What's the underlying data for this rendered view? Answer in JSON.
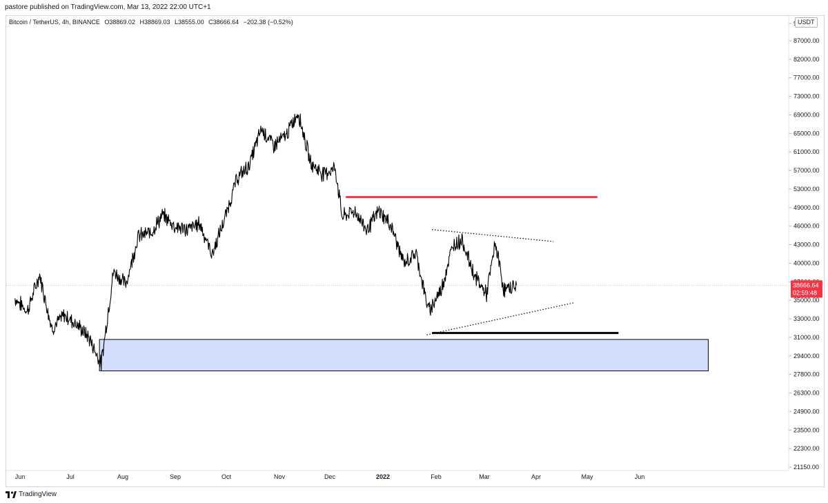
{
  "header": {
    "published_text": "pastore published on TradingView.com, Mar 13, 2022 22:00 UTC+1"
  },
  "legend": {
    "symbol": "Bitcoin / TetherUS, 4h, BINANCE",
    "open": "O38869.02",
    "high": "H38869.03",
    "low": "L38555.00",
    "close": "C38666.64",
    "change": "−202.38 (−0.52%)"
  },
  "currency": "USDT",
  "price_tag": {
    "value": "38666.64",
    "countdown": "02:59:48",
    "color": "#f23645"
  },
  "footer": {
    "brand": "TradingView"
  },
  "colors": {
    "resistance": "#f23645",
    "zone_fill": "#d3deff",
    "candles": "#000000",
    "last_price_line": "#f23645"
  },
  "chart_data": {
    "type": "line",
    "title": "",
    "xlabel": "",
    "ylabel": "",
    "scale": "log",
    "ylim": [
      20800,
      92000
    ],
    "x_ticks": [
      "Jun",
      "Jul",
      "Aug",
      "Sep",
      "Oct",
      "Nov",
      "Dec",
      "2022",
      "Feb",
      "Mar",
      "Apr",
      "May",
      "Jun"
    ],
    "y_ticks": [
      "9…",
      "87000.00",
      "82000.00",
      "77000.00",
      "73000.00",
      "69000.00",
      "65000.00",
      "61000.00",
      "57000.00",
      "53000.00",
      "49000.00",
      "46000.00",
      "43000.00",
      "40000.00",
      "37000.00",
      "35000.00",
      "33000.00",
      "31000.00",
      "29400.00",
      "27800.00",
      "26300.00",
      "24900.00",
      "23500.00",
      "22300.00",
      "21150.00"
    ],
    "series": [
      {
        "name": "",
        "x": [
          "2021-06-01",
          "2021-06-08",
          "2021-06-15",
          "2021-06-22",
          "2021-06-29",
          "2021-07-06",
          "2021-07-13",
          "2021-07-20",
          "2021-07-27",
          "2021-08-03",
          "2021-08-10",
          "2021-08-17",
          "2021-08-24",
          "2021-08-31",
          "2021-09-07",
          "2021-09-14",
          "2021-09-21",
          "2021-09-28",
          "2021-10-05",
          "2021-10-12",
          "2021-10-19",
          "2021-10-26",
          "2021-11-02",
          "2021-11-09",
          "2021-11-16",
          "2021-11-23",
          "2021-11-30",
          "2021-12-04",
          "2021-12-11",
          "2021-12-18",
          "2021-12-25",
          "2022-01-01",
          "2022-01-08",
          "2022-01-15",
          "2022-01-22",
          "2022-01-29",
          "2022-02-05",
          "2022-02-10",
          "2022-02-17",
          "2022-02-24",
          "2022-03-01",
          "2022-03-06",
          "2022-03-13"
        ],
        "values": [
          37000,
          35500,
          40000,
          33500,
          35000,
          34000,
          32500,
          29800,
          40500,
          38800,
          45500,
          46000,
          48800,
          47000,
          46500,
          47500,
          42800,
          48000,
          55000,
          57500,
          65000,
          61500,
          63500,
          68700,
          58000,
          56000,
          57000,
          48500,
          49500,
          46500,
          49500,
          47000,
          41500,
          43000,
          35500,
          38000,
          44200,
          45000,
          40000,
          37500,
          44500,
          38000,
          38666
        ]
      }
    ],
    "annotations": [
      {
        "kind": "horizontal-line",
        "label": "resistance",
        "y": 51800,
        "x_start": "2021-12-06",
        "x_end": "2022-04-28"
      },
      {
        "kind": "horizontal-line",
        "label": "support",
        "y": 33000,
        "x_start": "2022-01-24",
        "x_end": "2022-05-10"
      },
      {
        "kind": "zone",
        "label": "demand-zone",
        "y_low": 29100,
        "y_high": 32300,
        "x_start": "2021-07-19",
        "x_end": "2022-06-30"
      },
      {
        "kind": "trendline",
        "label": "upper-triangle",
        "x_start": "2022-01-24",
        "y_start": 46500,
        "x_end": "2022-04-03",
        "y_end": 44700
      },
      {
        "kind": "trendline",
        "label": "lower-triangle",
        "x_start": "2022-01-21",
        "y_start": 32800,
        "x_end": "2022-04-15",
        "y_end": 36500
      },
      {
        "kind": "last-price-line",
        "y": 38666.64
      }
    ],
    "grid": false,
    "legend": "top-left"
  }
}
